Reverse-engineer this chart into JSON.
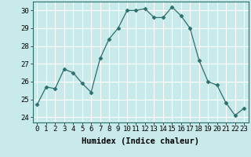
{
  "x": [
    0,
    1,
    2,
    3,
    4,
    5,
    6,
    7,
    8,
    9,
    10,
    11,
    12,
    13,
    14,
    15,
    16,
    17,
    18,
    19,
    20,
    21,
    22,
    23
  ],
  "y": [
    24.7,
    25.7,
    25.6,
    26.7,
    26.5,
    25.9,
    25.4,
    27.3,
    28.4,
    29.0,
    30.0,
    30.0,
    30.1,
    29.6,
    29.6,
    30.2,
    29.7,
    29.0,
    27.2,
    26.0,
    25.8,
    24.8,
    24.1,
    24.5
  ],
  "line_color": "#2d6e6e",
  "marker": "D",
  "marker_size": 2.5,
  "bg_color": "#c8eaea",
  "grid_color": "#ffffff",
  "xlabel": "Humidex (Indice chaleur)",
  "xlim": [
    -0.5,
    23.5
  ],
  "ylim": [
    23.7,
    30.5
  ],
  "yticks": [
    24,
    25,
    26,
    27,
    28,
    29,
    30
  ],
  "xticks": [
    0,
    1,
    2,
    3,
    4,
    5,
    6,
    7,
    8,
    9,
    10,
    11,
    12,
    13,
    14,
    15,
    16,
    17,
    18,
    19,
    20,
    21,
    22,
    23
  ],
  "xlabel_fontsize": 7.5,
  "tick_fontsize": 6.5
}
